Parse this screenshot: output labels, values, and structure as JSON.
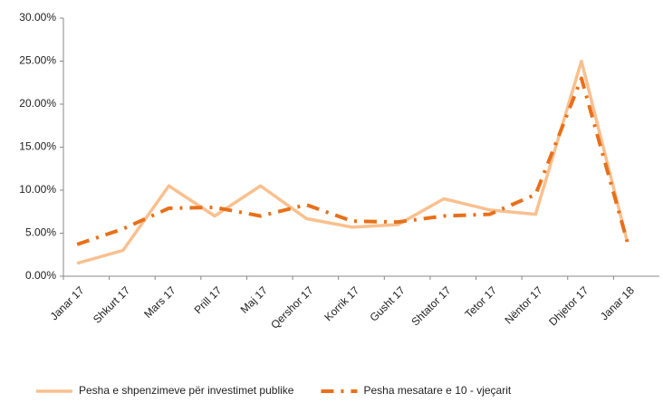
{
  "chart_data": {
    "type": "line",
    "categories": [
      "Janar 17",
      "Shkurt 17",
      "Mars 17",
      "Prill 17",
      "Maj 17",
      "Qershor 17",
      "Korrik 17",
      "Gusht 17",
      "Shtator 17",
      "Tetor 17",
      "Nëntor 17",
      "Dhjetor 17",
      "Janar 18"
    ],
    "series": [
      {
        "name": "Pesha e shpenzimeve për investimet publike",
        "color": "#f9c08f",
        "style": "solid",
        "values": [
          1.5,
          3,
          10.5,
          7,
          10.5,
          6.7,
          5.7,
          6,
          9,
          7.7,
          7.2,
          25,
          4
        ]
      },
      {
        "name": "Pesha mesatare e 10 - vjeçarit",
        "color": "#e8701a",
        "style": "dashdot",
        "values": [
          3.7,
          5.5,
          7.9,
          8,
          7,
          8.3,
          6.4,
          6.3,
          7,
          7.2,
          9.5,
          23,
          4
        ]
      }
    ],
    "ylim": [
      0,
      30
    ],
    "yticks": [
      {
        "value": 0,
        "label": "0.00%"
      },
      {
        "value": 5,
        "label": "5.00%"
      },
      {
        "value": 10,
        "label": "10.00%"
      },
      {
        "value": 15,
        "label": "15.00%"
      },
      {
        "value": 20,
        "label": "20.00%"
      },
      {
        "value": 25,
        "label": "25.00%"
      },
      {
        "value": 30,
        "label": "30.00%"
      }
    ],
    "grid": false
  }
}
